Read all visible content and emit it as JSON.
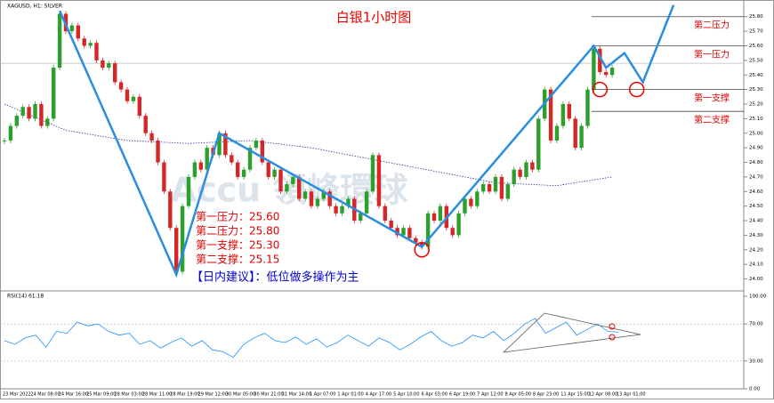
{
  "chart_data": {
    "type": "candlestick",
    "symbol": "XAGUSD, H1: SILVER",
    "title": "白银1小时图",
    "up_color": "#2ca02c",
    "down_color": "#d62728",
    "categories": [
      "23 Mar 2022",
      "24 Mar 08:00",
      "24 Mar 16:00",
      "25 Mar 09:00",
      "28 Mar 03:00",
      "28 Mar 11:00",
      "28 Mar 19:00",
      "29 Mar 12:00",
      "30 Mar 05:00",
      "30 Mar 21:00",
      "31 Mar 14:00",
      "1 Apr 07:00",
      "1 Apr 01:00",
      "4 Apr 17:00",
      "5 Apr 10:00",
      "6 Apr 03:00",
      "6 Apr 19:00",
      "7 Apr 12:00",
      "8 Apr 05:00",
      "8 Apr 23:00",
      "11 Apr 15:00",
      "12 Apr 08:00",
      "13 Apr 01:00"
    ],
    "closes": [
      24.95,
      25.05,
      25.12,
      25.18,
      25.1,
      25.2,
      25.05,
      25.1,
      25.45,
      25.82,
      25.7,
      25.74,
      25.65,
      25.6,
      25.62,
      25.5,
      25.45,
      25.48,
      25.35,
      25.3,
      25.22,
      25.25,
      25.12,
      25.0,
      24.95,
      24.8,
      24.6,
      24.35,
      24.05,
      24.5,
      24.7,
      24.8,
      24.75,
      24.9,
      24.85,
      25.0,
      24.85,
      24.8,
      24.7,
      24.75,
      24.9,
      24.95,
      24.8,
      24.7,
      24.75,
      24.6,
      24.65,
      24.7,
      24.55,
      24.6,
      24.5,
      24.55,
      24.6,
      24.5,
      24.45,
      24.5,
      24.55,
      24.4,
      24.45,
      24.6,
      24.85,
      24.5,
      24.4,
      24.35,
      24.3,
      24.35,
      24.28,
      24.25,
      24.22,
      24.45,
      24.4,
      24.5,
      24.35,
      24.3,
      24.45,
      24.55,
      24.5,
      24.6,
      24.65,
      24.6,
      24.7,
      24.55,
      24.65,
      24.75,
      24.7,
      24.8,
      24.75,
      25.1,
      25.3,
      24.95,
      25.05,
      25.2,
      25.1,
      24.9,
      25.05,
      25.3,
      25.58,
      25.42,
      25.4,
      25.45
    ],
    "ma": {
      "x": [
        0,
        10,
        20,
        30,
        40,
        50,
        60,
        70,
        80,
        90,
        99
      ],
      "values": [
        25.2,
        25.02,
        24.95,
        24.93,
        24.95,
        24.9,
        24.82,
        24.74,
        24.66,
        24.64,
        24.7
      ]
    },
    "price_line": 25.48,
    "ylim": [
      23.93,
      25.89
    ],
    "yticks": [
      {
        "value": 24.0,
        "label": "24.00"
      },
      {
        "value": 24.1,
        "label": "24.10"
      },
      {
        "value": 24.2,
        "label": "24.20"
      },
      {
        "value": 24.3,
        "label": "24.30"
      },
      {
        "value": 24.4,
        "label": "24.40"
      },
      {
        "value": 24.5,
        "label": "24.50"
      },
      {
        "value": 24.6,
        "label": "24.60"
      },
      {
        "value": 24.7,
        "label": "24.70"
      },
      {
        "value": 24.8,
        "label": "24.80"
      },
      {
        "value": 24.9,
        "label": "24.90"
      },
      {
        "value": 25.0,
        "label": "25.00"
      },
      {
        "value": 25.1,
        "label": "25.10"
      },
      {
        "value": 25.2,
        "label": "25.20"
      },
      {
        "value": 25.3,
        "label": "25.30"
      },
      {
        "value": 25.4,
        "label": "25.40"
      },
      {
        "value": 25.5,
        "label": "25.50"
      },
      {
        "value": 25.6,
        "label": "25.60"
      },
      {
        "value": 25.7,
        "label": "25.70"
      },
      {
        "value": 25.8,
        "label": "25.80"
      }
    ],
    "levels": [
      {
        "label": "第二压力",
        "value": 25.8
      },
      {
        "label": "第一压力",
        "value": 25.6
      },
      {
        "label": "第一支撑",
        "value": 25.3
      },
      {
        "label": "第二支撑",
        "value": 25.15
      }
    ],
    "trend": {
      "x": [
        9,
        28,
        35,
        68,
        96,
        98,
        101,
        104,
        109
      ],
      "values": [
        25.84,
        24.03,
        25.0,
        24.22,
        25.6,
        25.45,
        25.55,
        25.35,
        25.88
      ]
    },
    "circles": {
      "x": [
        68,
        97,
        103
      ],
      "values": [
        24.2,
        25.3,
        25.3
      ]
    },
    "notes": [
      "第一压力：25.60",
      "第二压力：25.80",
      "第一支撑：25.30",
      "第二支撑：25.15"
    ],
    "advice": "【日内建议】：低位做多操作为主",
    "rsi": {
      "label": "RSI(14) 61.18",
      "values": [
        52,
        48,
        55,
        58,
        45,
        62,
        60,
        72,
        68,
        70,
        62,
        58,
        60,
        48,
        52,
        44,
        50,
        55,
        46,
        52,
        42,
        40,
        34,
        48,
        55,
        60,
        52,
        50,
        56,
        48,
        54,
        45,
        50,
        58,
        52,
        46,
        55,
        50,
        42,
        48,
        56,
        62,
        52,
        46,
        50,
        58,
        55,
        62,
        52,
        60,
        70,
        76,
        60,
        66,
        72,
        58,
        64,
        70,
        62,
        61.18
      ],
      "ylim": [
        0,
        100
      ],
      "yticks": [
        {
          "value": 100,
          "label": "100.00"
        },
        {
          "value": 70,
          "label": "70.00"
        },
        {
          "value": 30,
          "label": "30.00"
        },
        {
          "value": 0,
          "label": "0.00"
        }
      ]
    }
  }
}
